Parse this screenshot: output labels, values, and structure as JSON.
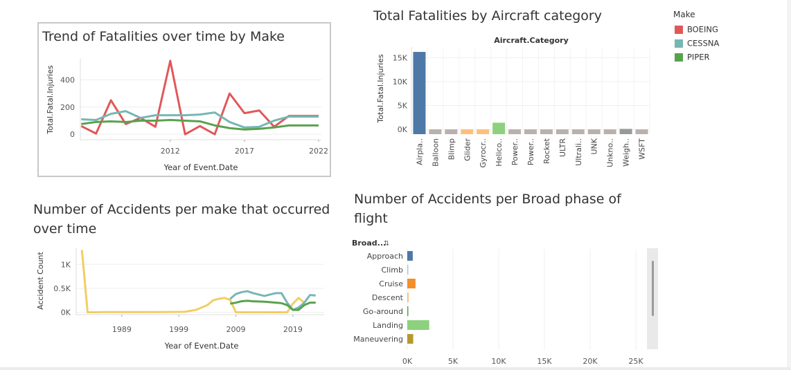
{
  "legend": {
    "title": "Make",
    "items": [
      {
        "label": "BOEING",
        "color": "#e15759"
      },
      {
        "label": "CESSNA",
        "color": "#76b7b2"
      },
      {
        "label": "PIPER",
        "color": "#59a14f"
      }
    ]
  },
  "chart_data": [
    {
      "type": "line",
      "title": "Trend of Fatalities over time by Make",
      "xlabel": "Year of Event.Date",
      "ylabel": "Total.Fatal.Injuries",
      "x_ticks": [
        "2012",
        "2017",
        "2022"
      ],
      "y_ticks": [
        "0",
        "200",
        "400"
      ],
      "xlim": [
        2006.5,
        2022
      ],
      "ylim": [
        -40,
        560
      ],
      "x": [
        2006,
        2007,
        2008,
        2009,
        2010,
        2011,
        2012,
        2013,
        2014,
        2015,
        2016,
        2017,
        2018,
        2019,
        2020,
        2021,
        2022
      ],
      "series": [
        {
          "name": "BOEING",
          "color": "#e15759",
          "values": [
            60,
            5,
            250,
            75,
            120,
            55,
            540,
            0,
            60,
            0,
            300,
            155,
            175,
            55,
            135,
            135,
            135
          ]
        },
        {
          "name": "CESSNA",
          "color": "#76b7b2",
          "values": [
            110,
            105,
            150,
            170,
            120,
            140,
            140,
            140,
            145,
            160,
            90,
            50,
            55,
            100,
            130,
            130,
            130
          ]
        },
        {
          "name": "PIPER",
          "color": "#59a14f",
          "values": [
            75,
            90,
            95,
            90,
            100,
            100,
            105,
            100,
            95,
            65,
            45,
            35,
            40,
            50,
            65,
            65,
            65
          ]
        }
      ]
    },
    {
      "type": "bar",
      "title": "Total Fatalities by Aircraft category",
      "header": "Aircraft.Category",
      "ylabel": "Total.Fatal.Injuries",
      "y_ticks": [
        "0K",
        "5K",
        "10K",
        "15K"
      ],
      "ylim": [
        -1000,
        16500
      ],
      "categories": [
        "Airpla..",
        "Balloon",
        "Blimp",
        "Glider",
        "Gyrocr..",
        "Helico..",
        "Power..",
        "Power..",
        "Rocket",
        "ULTR",
        "Ultrali..",
        "UNK",
        "Unkno..",
        "Weigh..",
        "WSFT"
      ],
      "values": [
        16200,
        0,
        0,
        10,
        10,
        1400,
        0,
        0,
        0,
        0,
        0,
        0,
        0,
        100,
        0
      ],
      "colors": [
        "#4e79a7",
        "#bab0ac",
        "#bab0ac",
        "#ffbe7d",
        "#ffbe7d",
        "#8cd17d",
        "#bab0ac",
        "#bab0ac",
        "#bab0ac",
        "#bab0ac",
        "#bab0ac",
        "#bab0ac",
        "#bab0ac",
        "#999999",
        "#bab0ac"
      ]
    },
    {
      "type": "line",
      "title_line1": "Number of Accidents per make that occurred",
      "title_line2": "over time",
      "xlabel": "Year of Event.Date",
      "ylabel": "Accident Count",
      "x_ticks": [
        "1989",
        "1999",
        "2009",
        "2019"
      ],
      "y_ticks": [
        "0K",
        "0.5K",
        "1K"
      ],
      "xlim": [
        1981,
        2024
      ],
      "ylim": [
        -50,
        1350
      ],
      "series": [
        {
          "name": "BOEING",
          "color": "#f1ce63",
          "x": [
            1982,
            1983,
            1984,
            1986,
            1990,
            1995,
            2000,
            2002,
            2004,
            2005,
            2006,
            2007,
            2008,
            2009,
            2010,
            2012,
            2015,
            2017,
            2018,
            2019,
            2020,
            2021
          ],
          "values": [
            1300,
            0,
            0,
            5,
            5,
            5,
            10,
            50,
            150,
            250,
            280,
            300,
            260,
            0,
            0,
            0,
            0,
            0,
            0,
            180,
            300,
            200
          ]
        },
        {
          "name": "CESSNA",
          "color": "#76b7b2",
          "x": [
            2008,
            2009,
            2010,
            2011,
            2012,
            2014,
            2016,
            2017,
            2018,
            2019,
            2020,
            2021,
            2022,
            2023
          ],
          "values": [
            280,
            380,
            420,
            440,
            400,
            340,
            400,
            400,
            200,
            50,
            100,
            200,
            360,
            350
          ]
        },
        {
          "name": "PIPER",
          "color": "#59a14f",
          "x": [
            2008,
            2009,
            2010,
            2011,
            2012,
            2014,
            2016,
            2017,
            2018,
            2019,
            2020,
            2021,
            2022,
            2023
          ],
          "values": [
            180,
            200,
            230,
            240,
            230,
            220,
            200,
            190,
            150,
            50,
            50,
            150,
            200,
            200
          ]
        }
      ]
    },
    {
      "type": "bar",
      "orientation": "horizontal",
      "title_line1": "Number of Accidents per Broad phase of",
      "title_line2": "flight",
      "header": "Broad...",
      "x_ticks": [
        "0K",
        "5K",
        "10K",
        "15K",
        "20K",
        "25K"
      ],
      "xlim": [
        0,
        25000
      ],
      "categories": [
        "Approach",
        "Climb",
        "Cruise",
        "Descent",
        "Go-around",
        "Landing",
        "Maneuvering"
      ],
      "values": [
        600,
        100,
        900,
        150,
        60,
        2400,
        650
      ],
      "colors": [
        "#4e79a7",
        "#a0cbe8",
        "#f28e2b",
        "#ffbe7d",
        "#59a14f",
        "#8cd17d",
        "#b6992d"
      ]
    }
  ]
}
